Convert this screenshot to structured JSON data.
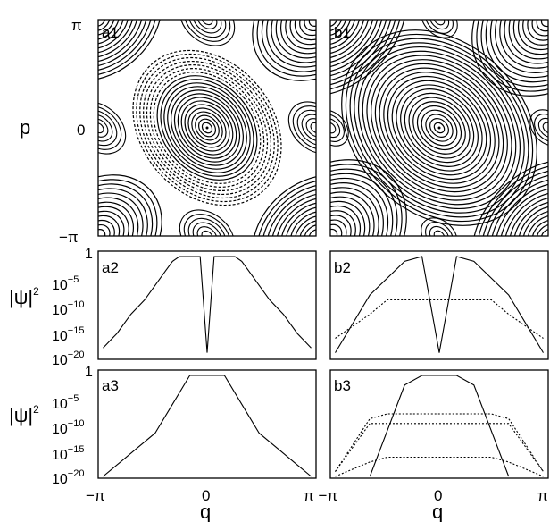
{
  "figure": {
    "panel_labels": {
      "a1": "a1",
      "b1": "b1",
      "a2": "a2",
      "b2": "b2",
      "a3": "a3",
      "b3": "b3"
    },
    "y_label_phase": "p",
    "y_label_density": "|ψ|²",
    "y_label_density_base": "|ψ|",
    "y_label_density_exp": "2",
    "x_label": "q",
    "phase_ticks_y": [
      "π",
      "0",
      "−π"
    ],
    "x_ticks_left": [
      "−π",
      "0",
      "π"
    ],
    "x_ticks_right": [
      "−π",
      "0",
      "π"
    ],
    "density_ticks": [
      "1",
      "10",
      "10",
      "10",
      "10"
    ],
    "density_tick_exps": [
      "",
      "−5",
      "−10",
      "−15",
      "−20"
    ],
    "x_tick_combined": "π −π"
  },
  "chart_data": [
    {
      "type": "scatter",
      "panel": "a1",
      "description_series": "phase-space orbits: central elliptic island, chaotic separatrix layer, corner islands",
      "xlim": [
        -3.1416,
        3.1416
      ],
      "ylim": [
        -3.1416,
        3.1416
      ],
      "xticks": [
        "−π",
        "0",
        "π"
      ],
      "yticks": [
        "π",
        "0",
        "−π"
      ],
      "ylabel": "p"
    },
    {
      "type": "scatter",
      "panel": "b1",
      "xlim": [
        -3.1416,
        3.1416
      ],
      "ylim": [
        -3.1416,
        3.1416
      ],
      "xticks": [
        "−π",
        "0",
        "π"
      ]
    },
    {
      "type": "line",
      "panel": "a2",
      "ylabel": "|ψ|²",
      "yscale": "log",
      "ylim": [
        1e-21,
        1
      ],
      "series": [
        {
          "style": "solid",
          "x": [
            -3.0,
            -2.6,
            -2.2,
            -1.8,
            -1.5,
            -1.2,
            -1.0,
            -0.8,
            -0.5,
            -0.2,
            0,
            0.2,
            0.5,
            0.8,
            1.0,
            1.2,
            1.5,
            1.8,
            2.2,
            2.6,
            3.0
          ],
          "log10y": [
            -19,
            -16,
            -12,
            -9,
            -6,
            -3,
            -1,
            0,
            0,
            0,
            -20,
            0,
            0,
            0,
            -1,
            -3,
            -6,
            -9,
            -12,
            -16,
            -19
          ]
        }
      ]
    },
    {
      "type": "line",
      "panel": "b2",
      "yscale": "log",
      "ylim": [
        1e-21,
        1
      ],
      "series": [
        {
          "style": "solid",
          "x": [
            -3.0,
            -2.0,
            -1.0,
            -0.5,
            0,
            0.5,
            1.0,
            2.0,
            3.0
          ],
          "log10y": [
            -20,
            -8,
            -1,
            0,
            -20,
            0,
            -1,
            -8,
            -20
          ]
        },
        {
          "style": "dotted",
          "x": [
            -3.0,
            -2.0,
            -1.5,
            -1.0,
            0,
            1.0,
            1.5,
            2.0,
            3.0
          ],
          "log10y": [
            -17,
            -12,
            -9,
            -9,
            -9,
            -9,
            -9,
            -12,
            -17
          ]
        }
      ]
    },
    {
      "type": "line",
      "panel": "a3",
      "ylabel": "|ψ|²",
      "yscale": "log",
      "ylim": [
        1e-21,
        1
      ],
      "series": [
        {
          "style": "solid",
          "x": [
            -3.0,
            -2.5,
            -2.0,
            -1.5,
            -1.0,
            -0.5,
            0,
            0.5,
            1.0,
            1.5,
            2.0,
            2.5,
            3.0
          ],
          "log10y": [
            -21,
            -18,
            -15,
            -12,
            -6,
            0,
            0,
            0,
            -6,
            -12,
            -15,
            -18,
            -21
          ]
        }
      ]
    },
    {
      "type": "line",
      "panel": "b3",
      "yscale": "log",
      "ylim": [
        1e-21,
        1
      ],
      "series": [
        {
          "style": "solid",
          "x": [
            -2.0,
            -1.0,
            -0.5,
            0,
            0.5,
            1.0,
            2.0
          ],
          "log10y": [
            -21,
            -2,
            0,
            0,
            0,
            -2,
            -21
          ]
        },
        {
          "style": "dotted",
          "x": [
            -3.0,
            -2.0,
            -1.5,
            0,
            1.5,
            2.0,
            3.0
          ],
          "log10y": [
            -20,
            -9,
            -8,
            -8,
            -8,
            -9,
            -20
          ]
        },
        {
          "style": "dotted",
          "x": [
            -3.0,
            -2.0,
            -1.5,
            0,
            1.5,
            2.0,
            3.0
          ],
          "log10y": [
            -20,
            -10,
            -10,
            -10,
            -10,
            -10,
            -20
          ]
        },
        {
          "style": "dotted",
          "x": [
            -3.0,
            -2.0,
            -1.5,
            0,
            1.5,
            2.0,
            3.0
          ],
          "log10y": [
            -21,
            -18,
            -17,
            -17,
            -17,
            -18,
            -21
          ]
        }
      ]
    }
  ]
}
